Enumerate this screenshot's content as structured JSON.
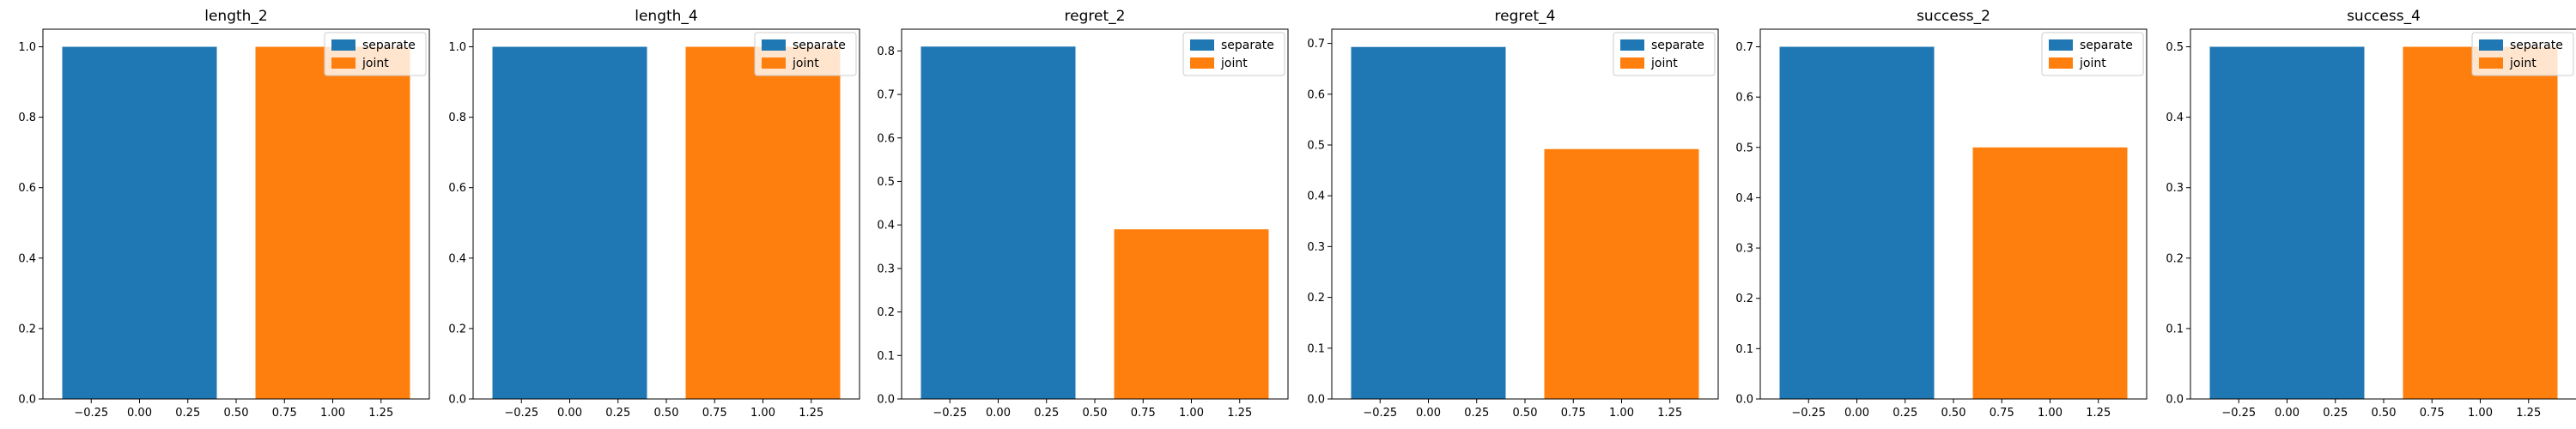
{
  "chart_data": [
    {
      "type": "bar",
      "title": "length_2",
      "x": [
        0,
        1
      ],
      "series": [
        {
          "name": "separate",
          "values": [
            1.0,
            null
          ]
        },
        {
          "name": "joint",
          "values": [
            null,
            1.0
          ]
        }
      ],
      "xlim": [
        -0.5,
        1.5
      ],
      "ylim": [
        0,
        1.05
      ],
      "xticks": [
        "−0.25",
        "0.00",
        "0.25",
        "0.50",
        "0.75",
        "1.00",
        "1.25"
      ],
      "yticks": [
        "0.0",
        "0.2",
        "0.4",
        "0.6",
        "0.8",
        "1.0"
      ],
      "legend_position": "top-right"
    },
    {
      "type": "bar",
      "title": "length_4",
      "x": [
        0,
        1
      ],
      "series": [
        {
          "name": "separate",
          "values": [
            1.0,
            null
          ]
        },
        {
          "name": "joint",
          "values": [
            null,
            1.0
          ]
        }
      ],
      "xlim": [
        -0.5,
        1.5
      ],
      "ylim": [
        0,
        1.05
      ],
      "xticks": [
        "−0.25",
        "0.00",
        "0.25",
        "0.50",
        "0.75",
        "1.00",
        "1.25"
      ],
      "yticks": [
        "0.0",
        "0.2",
        "0.4",
        "0.6",
        "0.8",
        "1.0"
      ],
      "legend_position": "top-right"
    },
    {
      "type": "bar",
      "title": "regret_2",
      "x": [
        0,
        1
      ],
      "series": [
        {
          "name": "separate",
          "values": [
            0.81,
            null
          ]
        },
        {
          "name": "joint",
          "values": [
            null,
            0.39
          ]
        }
      ],
      "xlim": [
        -0.5,
        1.5
      ],
      "ylim": [
        0,
        0.85
      ],
      "xticks": [
        "−0.25",
        "0.00",
        "0.25",
        "0.50",
        "0.75",
        "1.00",
        "1.25"
      ],
      "yticks": [
        "0.0",
        "0.1",
        "0.2",
        "0.3",
        "0.4",
        "0.5",
        "0.6",
        "0.7",
        "0.8"
      ],
      "legend_position": "top-right"
    },
    {
      "type": "bar",
      "title": "regret_4",
      "x": [
        0,
        1
      ],
      "series": [
        {
          "name": "separate",
          "values": [
            0.693,
            null
          ]
        },
        {
          "name": "joint",
          "values": [
            null,
            0.492
          ]
        }
      ],
      "xlim": [
        -0.5,
        1.5
      ],
      "ylim": [
        0,
        0.728
      ],
      "xticks": [
        "−0.25",
        "0.00",
        "0.25",
        "0.50",
        "0.75",
        "1.00",
        "1.25"
      ],
      "yticks": [
        "0.0",
        "0.1",
        "0.2",
        "0.3",
        "0.4",
        "0.5",
        "0.6",
        "0.7"
      ],
      "legend_position": "top-right"
    },
    {
      "type": "bar",
      "title": "success_2",
      "x": [
        0,
        1
      ],
      "series": [
        {
          "name": "separate",
          "values": [
            0.7,
            null
          ]
        },
        {
          "name": "joint",
          "values": [
            null,
            0.5
          ]
        }
      ],
      "xlim": [
        -0.5,
        1.5
      ],
      "ylim": [
        0,
        0.735
      ],
      "xticks": [
        "−0.25",
        "0.00",
        "0.25",
        "0.50",
        "0.75",
        "1.00",
        "1.25"
      ],
      "yticks": [
        "0.0",
        "0.1",
        "0.2",
        "0.3",
        "0.4",
        "0.5",
        "0.6",
        "0.7"
      ],
      "legend_position": "top-right"
    },
    {
      "type": "bar",
      "title": "success_4",
      "x": [
        0,
        1
      ],
      "series": [
        {
          "name": "separate",
          "values": [
            0.5,
            null
          ]
        },
        {
          "name": "joint",
          "values": [
            null,
            0.5
          ]
        }
      ],
      "xlim": [
        -0.5,
        1.5
      ],
      "ylim": [
        0,
        0.525
      ],
      "xticks": [
        "−0.25",
        "0.00",
        "0.25",
        "0.50",
        "0.75",
        "1.00",
        "1.25"
      ],
      "yticks": [
        "0.0",
        "0.1",
        "0.2",
        "0.3",
        "0.4",
        "0.5"
      ],
      "legend_position": "top-right"
    }
  ],
  "colors": {
    "separate": "#1f77b4",
    "joint": "#ff7f0e",
    "axis": "#000000",
    "background": "#ffffff"
  }
}
